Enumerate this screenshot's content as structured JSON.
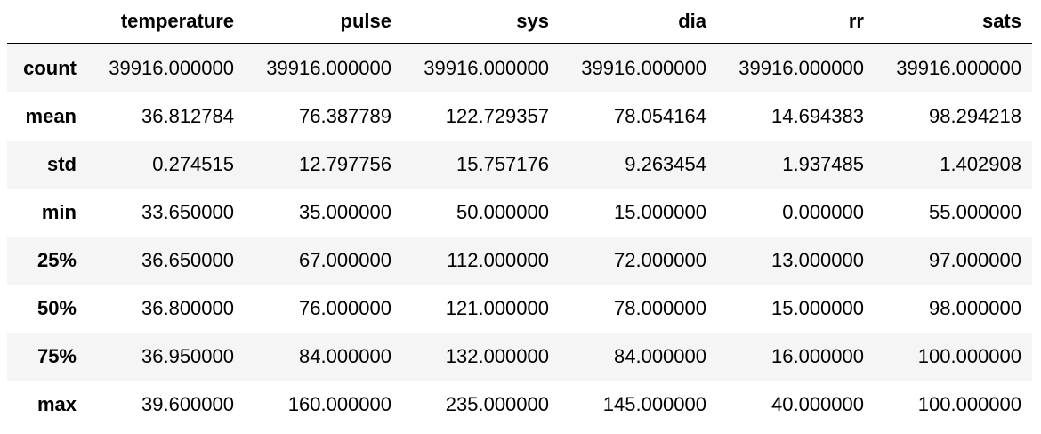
{
  "table": {
    "columns": [
      "temperature",
      "pulse",
      "sys",
      "dia",
      "rr",
      "sats"
    ],
    "rows": [
      {
        "index": "count",
        "values": [
          "39916.000000",
          "39916.000000",
          "39916.000000",
          "39916.000000",
          "39916.000000",
          "39916.000000"
        ]
      },
      {
        "index": "mean",
        "values": [
          "36.812784",
          "76.387789",
          "122.729357",
          "78.054164",
          "14.694383",
          "98.294218"
        ]
      },
      {
        "index": "std",
        "values": [
          "0.274515",
          "12.797756",
          "15.757176",
          "9.263454",
          "1.937485",
          "1.402908"
        ]
      },
      {
        "index": "min",
        "values": [
          "33.650000",
          "35.000000",
          "50.000000",
          "15.000000",
          "0.000000",
          "55.000000"
        ]
      },
      {
        "index": "25%",
        "values": [
          "36.650000",
          "67.000000",
          "112.000000",
          "72.000000",
          "13.000000",
          "97.000000"
        ]
      },
      {
        "index": "50%",
        "values": [
          "36.800000",
          "76.000000",
          "121.000000",
          "78.000000",
          "15.000000",
          "98.000000"
        ]
      },
      {
        "index": "75%",
        "values": [
          "36.950000",
          "84.000000",
          "132.000000",
          "84.000000",
          "16.000000",
          "100.000000"
        ]
      },
      {
        "index": "max",
        "values": [
          "39.600000",
          "160.000000",
          "235.000000",
          "145.000000",
          "40.000000",
          "100.000000"
        ]
      }
    ]
  }
}
